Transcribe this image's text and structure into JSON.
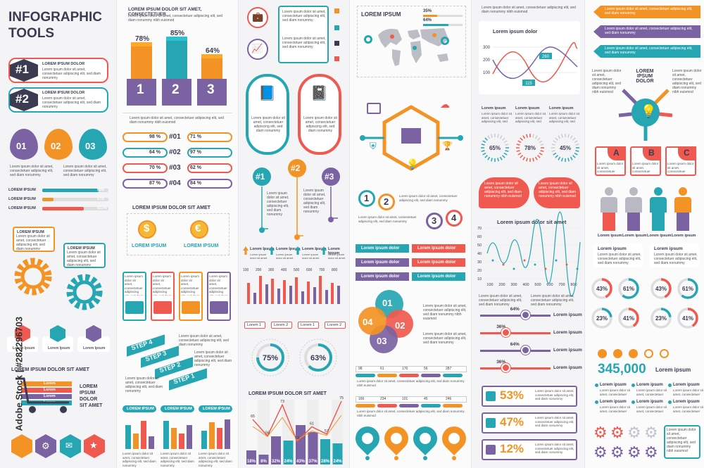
{
  "colors": {
    "teal": "#26a6b3",
    "orange": "#f39325",
    "purple": "#7b62a3",
    "red": "#f0594f",
    "navy": "#3b3b52",
    "gray": "#b9b9c3"
  },
  "title_line1": "INFOGRAPHIC",
  "title_line2": "TOOLS",
  "lorem": "Lorem ipsum dolor sit amet, consectetuer adipiscing elit, sed diam nonummy nibh euismod",
  "lorem_short": "Lorem ipsum dolor sit amet, consectetuer adipiscing elit, sed diam nonummy",
  "col1": {
    "badges": [
      {
        "num": "#1",
        "title": "LOREM IPSUM DOLOR"
      },
      {
        "num": "#2",
        "title": "LOREM IPSUM DOLOR"
      }
    ],
    "drops": [
      "01",
      "02",
      "03"
    ],
    "progress": [
      {
        "label": "LOREM IPSUM",
        "value": "85%",
        "pct": 0.85
      },
      {
        "label": "LOREM IPSUM",
        "value": "17%",
        "pct": 0.17
      },
      {
        "label": "LOREM IPSUM",
        "value": "62,9%",
        "pct": 0.629
      }
    ],
    "gear_labels": [
      "LOREM IPSUM",
      "LOREM IPSUM"
    ],
    "icon_labels": [
      "Lorem Ipsum",
      "Lorem Ipsum",
      "Lorem Ipsum"
    ],
    "cart_title": "LOREM IPSUM DOLOR SIT AMET",
    "cart_rows": [
      "Lorem",
      "Lorem",
      "Lorem",
      "Lorem"
    ],
    "cart_side": [
      "LOREM",
      "IPSUM",
      "DOLOR",
      "SIT AMET"
    ],
    "watermark": "Adobe Stock | #282296703"
  },
  "col2": {
    "heading": "LOREM IPSUM DOLOR SIT AMET, CONSECTETUER",
    "bars3d": [
      {
        "num": "1",
        "pct": "78%"
      },
      {
        "num": "2",
        "pct": "85%"
      },
      {
        "num": "3",
        "pct": "64%"
      }
    ],
    "rank_title": "LOREM IPSUM DOLOR SIT AMET",
    "ranks": [
      {
        "left": "98 %",
        "num": "#01",
        "right": "71 %"
      },
      {
        "left": "64 %",
        "num": "#02",
        "right": "97 %"
      },
      {
        "left": "70 %",
        "num": "#03",
        "right": "62 %"
      },
      {
        "left": "87 %",
        "num": "#04",
        "right": "84 %"
      }
    ],
    "coins_title": "LOREM IPSUM DOLOR SIT AMET",
    "coins": [
      {
        "sym": "$",
        "label": "LOREM IPSUM"
      },
      {
        "sym": "€",
        "label": "LOREM IPSUM"
      }
    ],
    "steps": [
      "STEP 4",
      "STEP 3",
      "STEP 2",
      "STEP 1"
    ],
    "bar_groups": [
      "LOREM IPSUM",
      "LOREM IPSUM",
      "LOREM IPSUM"
    ]
  },
  "col3": {
    "nums": [
      "#1",
      "#2",
      "#3"
    ],
    "arrows": [
      "Lorem Ipsum",
      "Lorem Ipsum",
      "Lorem Ipsum",
      "Lorem Ipsum"
    ],
    "bar_ticks": [
      "100",
      "200",
      "300",
      "400",
      "500",
      "600",
      "700",
      "800"
    ],
    "legend": [
      "Lorem 1",
      "Lorem 2",
      "Lorem 1",
      "Lorem 2"
    ],
    "donuts": [
      {
        "pct": "75%",
        "v": 0.75
      },
      {
        "pct": "63%",
        "v": 0.63
      }
    ],
    "chart_title": "LOREM IPSUM DOLOR SIT AMET",
    "line_labels": [
      "65",
      "56",
      "73",
      "53",
      "61",
      "57",
      "75"
    ],
    "bottom_pcts": [
      "18%",
      "8%",
      "32%",
      "24%",
      "43%",
      "37%",
      "28%",
      "24%"
    ]
  },
  "col4": {
    "map_title": "LOREM IPSUM",
    "map_stats": [
      {
        "value": "35%",
        "pct": 0.35
      },
      {
        "value": "64%",
        "pct": 0.64
      }
    ],
    "circle_nums": [
      "1",
      "2",
      "3",
      "4"
    ],
    "ribbons": [
      "Lorem ipsum dolor",
      "Lorem ipsum dolor",
      "Lorem ipsum dolor",
      "Lorem ipsum dolor",
      "Lorem ipsum dolor",
      "Lorem ipsum dolor"
    ],
    "venn": [
      "01",
      "02",
      "03",
      "04"
    ],
    "tl1": [
      "98",
      "61",
      "176",
      "56",
      "287"
    ],
    "tl2": [
      "166",
      "234",
      "101",
      "45",
      "246"
    ]
  },
  "col5": {
    "chart_title": "Lorem ipsum dolor",
    "y_ticks": [
      "300",
      "200",
      "100"
    ],
    "callouts": [
      "260",
      "115"
    ],
    "stat_labels": [
      "Lorem ipsum",
      "Lorem ipsum",
      "Lorem ipsum"
    ],
    "radials": [
      "65%",
      "78%",
      "45%"
    ],
    "wave_title": "Lorem ipsum dolor sit amet",
    "wave_y": [
      "70",
      "60",
      "50",
      "40",
      "30",
      "20",
      "10"
    ],
    "wave_x": [
      "100",
      "200",
      "300",
      "400",
      "500",
      "600",
      "700",
      "800"
    ],
    "sliders": [
      {
        "pct": "64%",
        "label": "Lorem ipsum",
        "v": 0.64
      },
      {
        "pct": "36%",
        "label": "Lorem ipsum",
        "v": 0.36
      },
      {
        "pct": "64%",
        "label": "Lorem ipsum",
        "v": 0.64
      },
      {
        "pct": "36%",
        "label": "Lorem ipsum",
        "v": 0.36
      }
    ],
    "big_stats": [
      "53%",
      "47%",
      "12%"
    ]
  },
  "col6": {
    "bulb_title": "LOREM IPSUM DOLOR",
    "abc": [
      "A",
      "B",
      "C"
    ],
    "people_labels": [
      "Lorem ipsum",
      "Lorem ipsum",
      "Lorem ipsum",
      "Lorem ipsum"
    ],
    "lorem_tags": [
      "Lorem ipsum",
      "Lorem ipsum"
    ],
    "ring_pcts": [
      "43%",
      "61%",
      "43%",
      "61%",
      "23%",
      "41%",
      "23%",
      "41%"
    ],
    "big_number": "345,000",
    "big_label": "Lorem ipsum",
    "list_labels": [
      "Lorem ipsum",
      "Lorem ipsum",
      "Lorem ipsum",
      "Lorem ipsum",
      "Lorem ipsum",
      "Lorem ipsum"
    ]
  }
}
